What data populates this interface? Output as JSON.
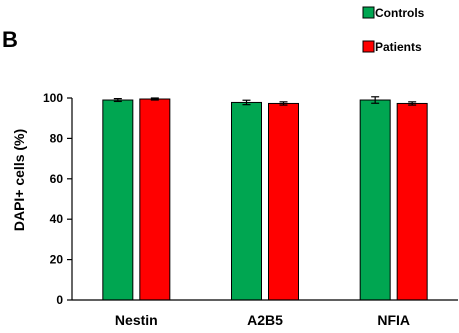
{
  "panel_label": "B",
  "chart_data": {
    "type": "bar",
    "title": "",
    "xlabel": "",
    "ylabel": "DAPI+ cells (%)",
    "ylim": [
      0,
      100
    ],
    "yticks": [
      0,
      20,
      40,
      60,
      80,
      100
    ],
    "categories": [
      "Nestin",
      "A2B5",
      "NFIA"
    ],
    "series": [
      {
        "name": "Controls",
        "color": "#00a651",
        "values": [
          99.0,
          97.8,
          99.0
        ],
        "errors": [
          0.7,
          1.1,
          1.6
        ]
      },
      {
        "name": "Patients",
        "color": "#ff0000",
        "values": [
          99.5,
          97.3,
          97.3
        ],
        "errors": [
          0.5,
          0.8,
          0.8
        ]
      }
    ],
    "legend": "top-right",
    "grid": false,
    "error_bars": true
  }
}
